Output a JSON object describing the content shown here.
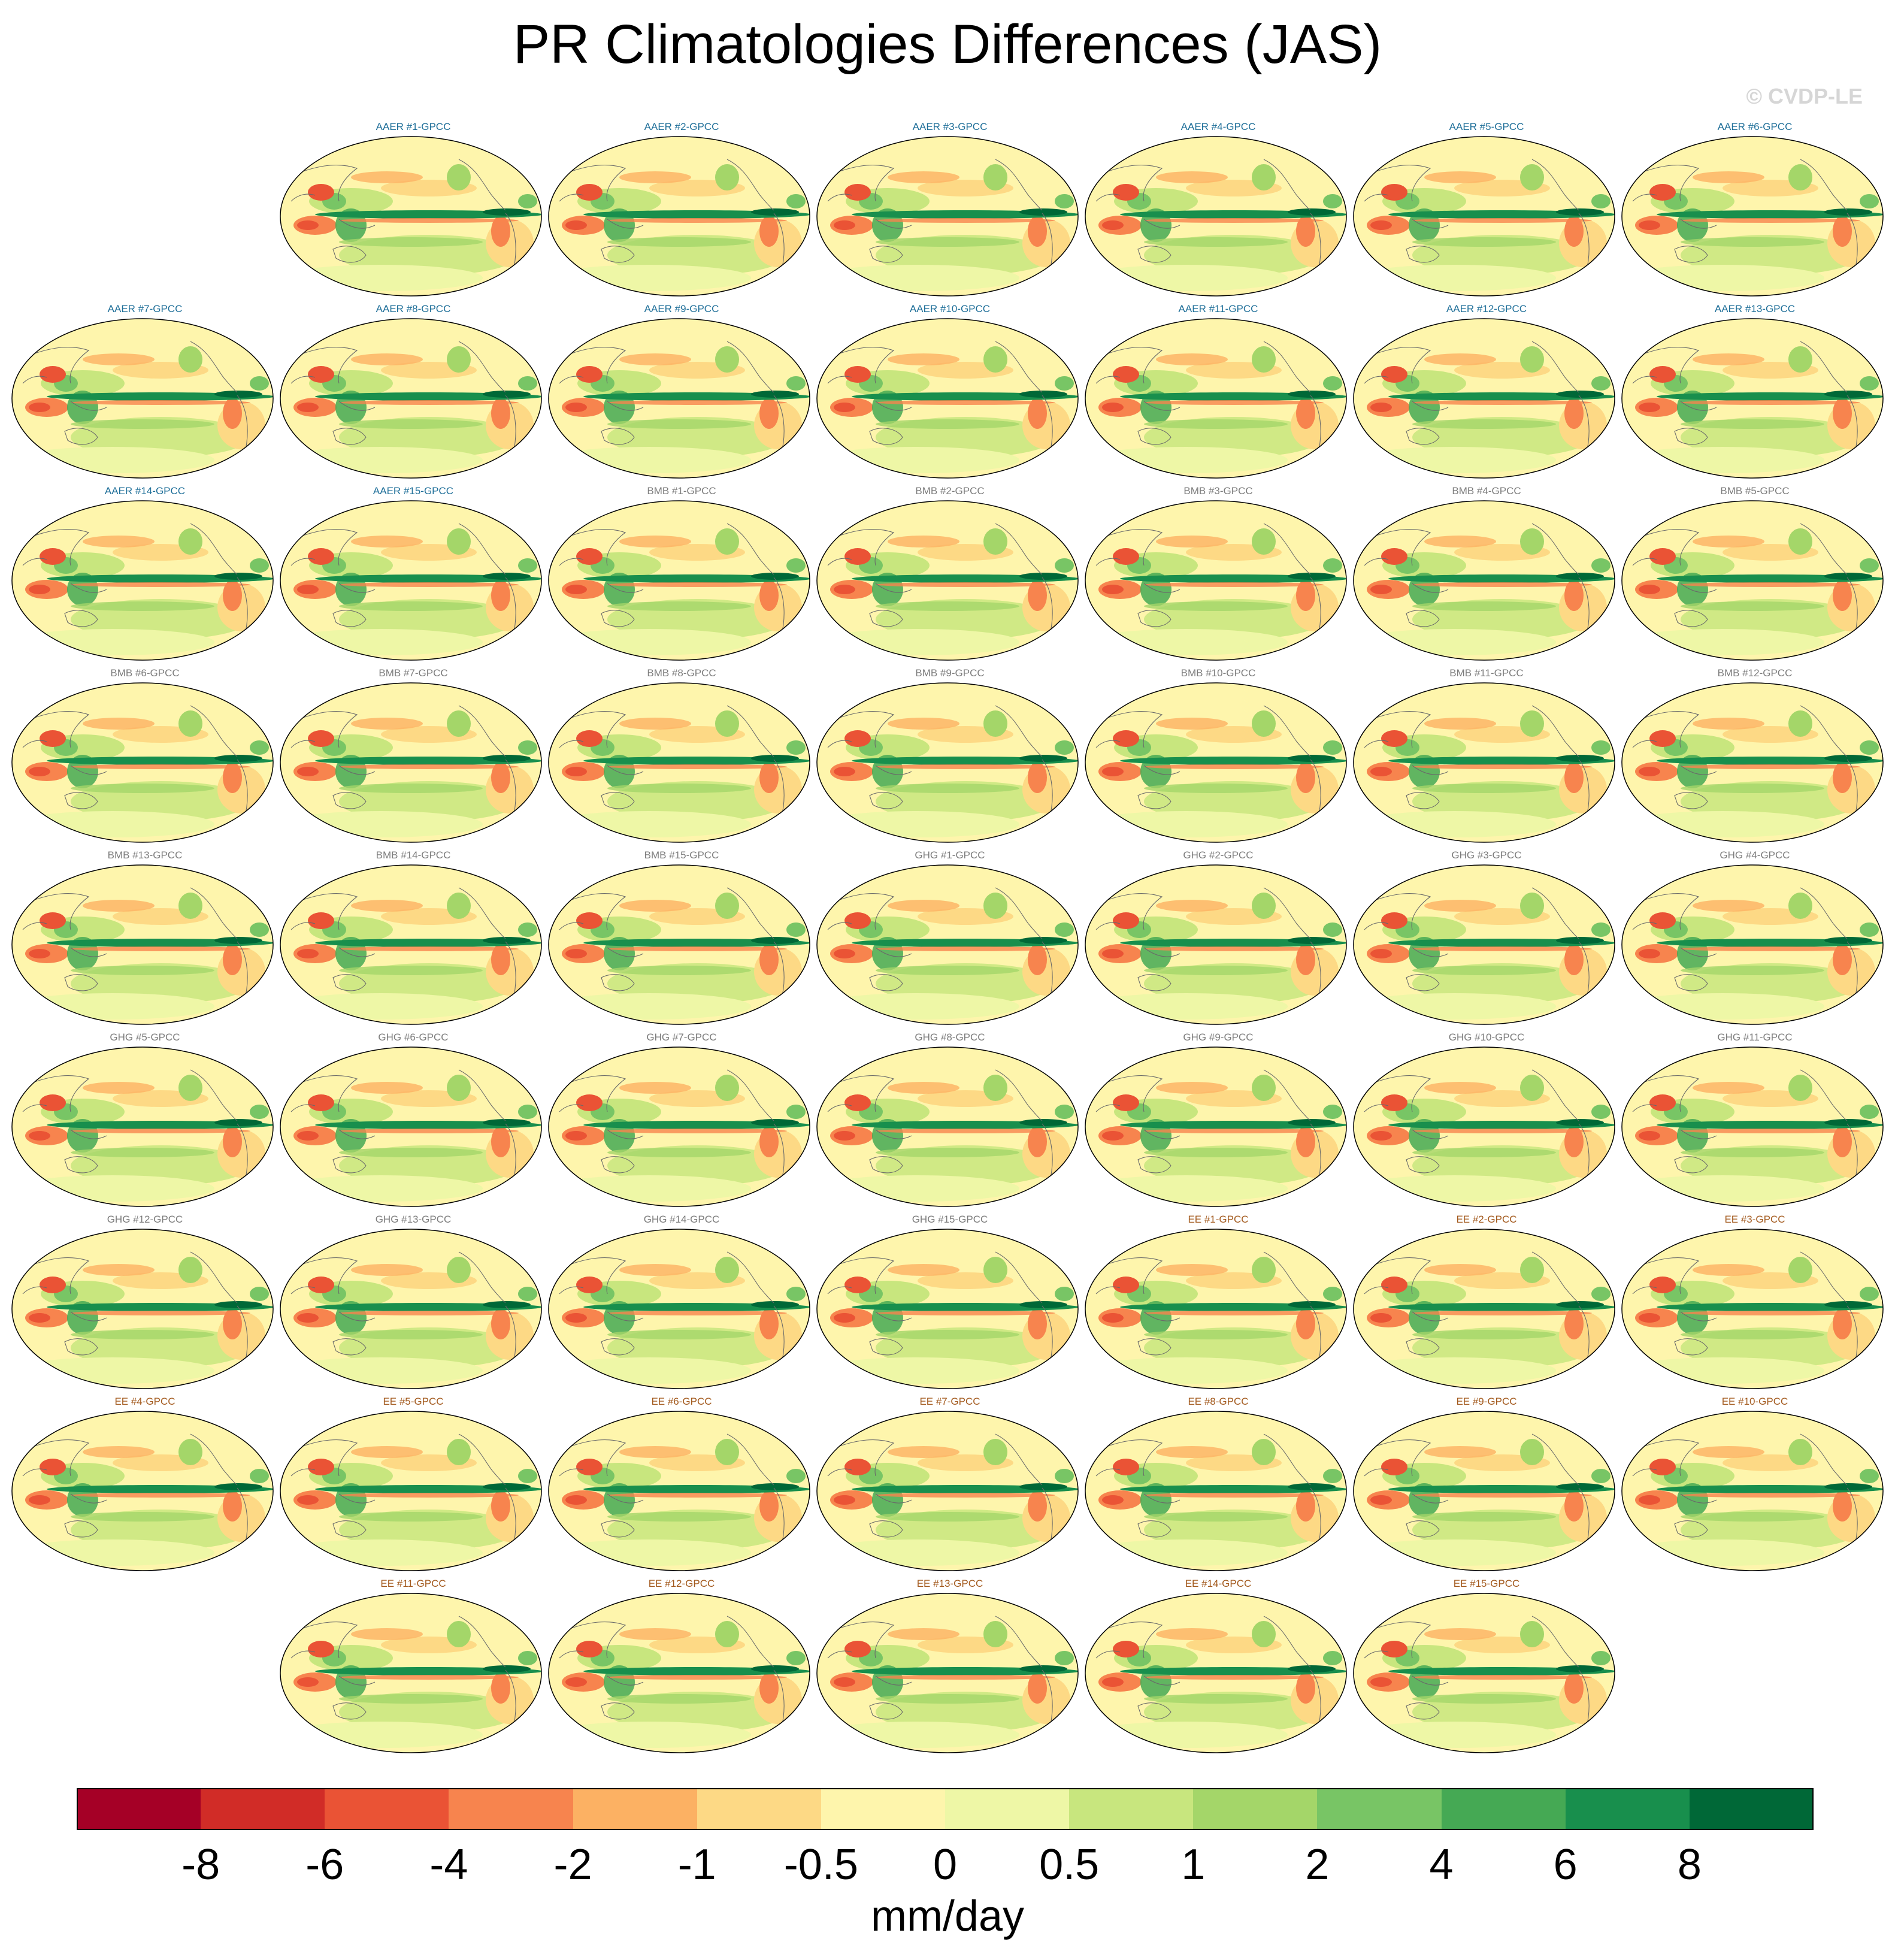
{
  "title": "PR Climatologies Differences (JAS)",
  "credit": "© CVDP-LE",
  "groups": {
    "AAER": {
      "color": "#1f6f99"
    },
    "BMB": {
      "color": "#7c7c7c"
    },
    "GHG": {
      "color": "#7c7c7c"
    },
    "EE": {
      "color": "#a35a1e"
    }
  },
  "panels": [
    "AAER #1-GPCC",
    "AAER #2-GPCC",
    "AAER #3-GPCC",
    "AAER #4-GPCC",
    "AAER #5-GPCC",
    "AAER #6-GPCC",
    "AAER #7-GPCC",
    "AAER #8-GPCC",
    "AAER #9-GPCC",
    "AAER #10-GPCC",
    "AAER #11-GPCC",
    "AAER #12-GPCC",
    "AAER #13-GPCC",
    "AAER #14-GPCC",
    "AAER #15-GPCC",
    "BMB #1-GPCC",
    "BMB #2-GPCC",
    "BMB #3-GPCC",
    "BMB #4-GPCC",
    "BMB #5-GPCC",
    "BMB #6-GPCC",
    "BMB #7-GPCC",
    "BMB #8-GPCC",
    "BMB #9-GPCC",
    "BMB #10-GPCC",
    "BMB #11-GPCC",
    "BMB #12-GPCC",
    "BMB #13-GPCC",
    "BMB #14-GPCC",
    "BMB #15-GPCC",
    "GHG #1-GPCC",
    "GHG #2-GPCC",
    "GHG #3-GPCC",
    "GHG #4-GPCC",
    "GHG #5-GPCC",
    "GHG #6-GPCC",
    "GHG #7-GPCC",
    "GHG #8-GPCC",
    "GHG #9-GPCC",
    "GHG #10-GPCC",
    "GHG #11-GPCC",
    "GHG #12-GPCC",
    "GHG #13-GPCC",
    "GHG #14-GPCC",
    "GHG #15-GPCC",
    "EE #1-GPCC",
    "EE #2-GPCC",
    "EE #3-GPCC",
    "EE #4-GPCC",
    "EE #5-GPCC",
    "EE #6-GPCC",
    "EE #7-GPCC",
    "EE #8-GPCC",
    "EE #9-GPCC",
    "EE #10-GPCC",
    "EE #11-GPCC",
    "EE #12-GPCC",
    "EE #13-GPCC",
    "EE #14-GPCC",
    "EE #15-GPCC"
  ],
  "colorbar": {
    "colors": [
      "#a50026",
      "#d12c27",
      "#ea5335",
      "#f7844e",
      "#fcb163",
      "#fdd985",
      "#fef5ac",
      "#eef7a6",
      "#c8e67e",
      "#a4d669",
      "#78c565",
      "#45a954",
      "#188f4d",
      "#006837"
    ],
    "tick_labels": [
      "-8",
      "-6",
      "-4",
      "-2",
      "-1",
      "-0.5",
      "0",
      "0.5",
      "1",
      "2",
      "4",
      "6",
      "8"
    ],
    "units": "mm/day"
  }
}
